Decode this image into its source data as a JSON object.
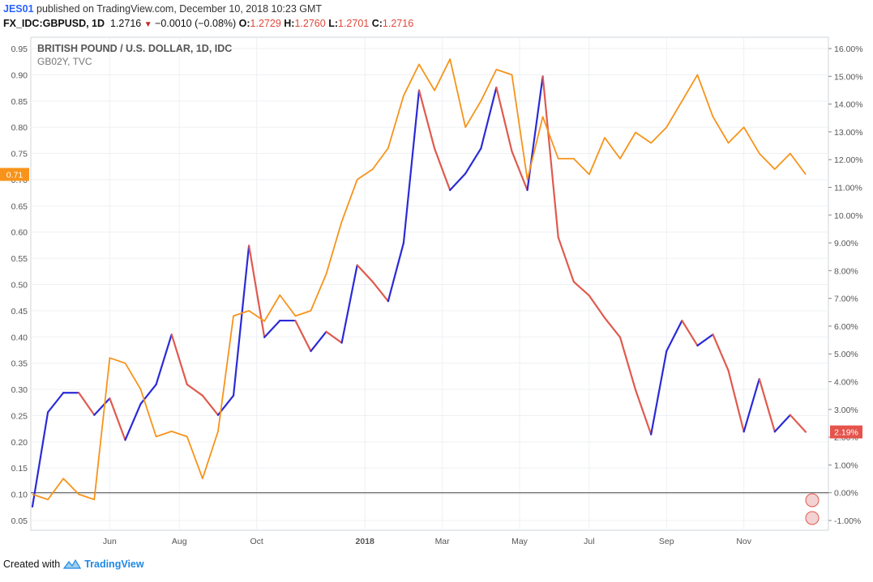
{
  "header": {
    "author": "JES01",
    "published": "published on TradingView.com, December 10, 2018 10:23 GMT",
    "symbol": "FX_IDC:GBPUSD, 1D",
    "last": "1.2716",
    "change": "−0.0010 (−0.08%)",
    "o_label": "O:",
    "o_value": "1.2729",
    "h_label": "H:",
    "h_value": "1.2760",
    "l_label": "L:",
    "l_value": "1.2701",
    "c_label": "C:",
    "c_value": "1.2716"
  },
  "footer": {
    "created_with": "Created with",
    "brand": "TradingView"
  },
  "chart_data": {
    "type": "line",
    "title": "BRITISH POUND / U.S. DOLLAR, 1D, IDC",
    "subtitle": "GB02Y, TVC",
    "x_tick_labels": [
      "Jun",
      "Aug",
      "Oct",
      "2018",
      "Mar",
      "May",
      "Jul",
      "Sep",
      "Nov"
    ],
    "x_tick_pos": [
      0.1,
      0.19,
      0.29,
      0.43,
      0.53,
      0.63,
      0.72,
      0.82,
      0.92
    ],
    "left_axis": {
      "ticks": [
        "0.05",
        "0.10",
        "0.15",
        "0.20",
        "0.25",
        "0.30",
        "0.35",
        "0.40",
        "0.45",
        "0.50",
        "0.55",
        "0.60",
        "0.65",
        "0.70",
        "0.75",
        "0.80",
        "0.85",
        "0.90",
        "0.95"
      ],
      "range": [
        0.05,
        0.95
      ],
      "current": "0.71",
      "current_value": 0.71
    },
    "right_axis": {
      "ticks": [
        "-1.00%",
        "0.00%",
        "1.00%",
        "2.00%",
        "3.00%",
        "4.00%",
        "5.00%",
        "6.00%",
        "7.00%",
        "8.00%",
        "9.00%",
        "10.00%",
        "11.00%",
        "12.00%",
        "13.00%",
        "14.00%",
        "15.00%",
        "16.00%"
      ],
      "range": [
        -1.0,
        16.0
      ],
      "current": "2.19%",
      "current_value": 2.19
    },
    "zero_line_value": 0.0,
    "colors": {
      "bull": "#2a2ad8",
      "bear": "#e05a4e",
      "orange": "#f7931a",
      "label_orange": "#f7931a",
      "label_red": "#e5534b"
    },
    "series": [
      {
        "name": "GBPUSD",
        "axis": "right",
        "style": "candles",
        "x": [
          0,
          0.02,
          0.04,
          0.06,
          0.08,
          0.1,
          0.12,
          0.14,
          0.16,
          0.18,
          0.2,
          0.22,
          0.24,
          0.26,
          0.28,
          0.3,
          0.32,
          0.34,
          0.36,
          0.38,
          0.4,
          0.42,
          0.44,
          0.46,
          0.48,
          0.5,
          0.52,
          0.54,
          0.56,
          0.58,
          0.6,
          0.62,
          0.64,
          0.66,
          0.68,
          0.7,
          0.72,
          0.74,
          0.76,
          0.78,
          0.8,
          0.82,
          0.84,
          0.86,
          0.88,
          0.9,
          0.92,
          0.94,
          0.96,
          0.98,
          1.0
        ],
        "values": [
          -0.5,
          2.9,
          3.6,
          3.6,
          2.8,
          3.4,
          1.9,
          3.2,
          3.9,
          5.7,
          3.9,
          3.5,
          2.8,
          3.5,
          8.9,
          5.6,
          6.2,
          6.2,
          5.1,
          5.8,
          5.4,
          8.2,
          7.6,
          6.9,
          9.0,
          14.5,
          12.4,
          10.9,
          11.5,
          12.4,
          14.6,
          12.3,
          10.9,
          15.0,
          9.2,
          7.6,
          7.1,
          6.3,
          5.6,
          3.7,
          2.1,
          5.1,
          6.2,
          5.3,
          5.7,
          4.4,
          2.2,
          4.1,
          2.2,
          2.8,
          2.19
        ]
      },
      {
        "name": "GB02Y",
        "axis": "left",
        "style": "line",
        "x": [
          0,
          0.02,
          0.04,
          0.06,
          0.08,
          0.1,
          0.12,
          0.14,
          0.16,
          0.18,
          0.2,
          0.22,
          0.24,
          0.26,
          0.28,
          0.3,
          0.32,
          0.34,
          0.36,
          0.38,
          0.4,
          0.42,
          0.44,
          0.46,
          0.48,
          0.5,
          0.52,
          0.54,
          0.56,
          0.58,
          0.6,
          0.62,
          0.64,
          0.66,
          0.68,
          0.7,
          0.72,
          0.74,
          0.76,
          0.78,
          0.8,
          0.82,
          0.84,
          0.86,
          0.88,
          0.9,
          0.92,
          0.94,
          0.96,
          0.98,
          1.0
        ],
        "values": [
          0.1,
          0.09,
          0.13,
          0.1,
          0.09,
          0.36,
          0.35,
          0.3,
          0.21,
          0.22,
          0.21,
          0.13,
          0.22,
          0.44,
          0.45,
          0.43,
          0.48,
          0.44,
          0.45,
          0.52,
          0.62,
          0.7,
          0.72,
          0.76,
          0.86,
          0.92,
          0.87,
          0.93,
          0.8,
          0.85,
          0.91,
          0.9,
          0.7,
          0.82,
          0.74,
          0.74,
          0.71,
          0.78,
          0.74,
          0.79,
          0.77,
          0.8,
          0.85,
          0.9,
          0.82,
          0.77,
          0.8,
          0.75,
          0.72,
          0.75,
          0.71
        ]
      }
    ]
  }
}
